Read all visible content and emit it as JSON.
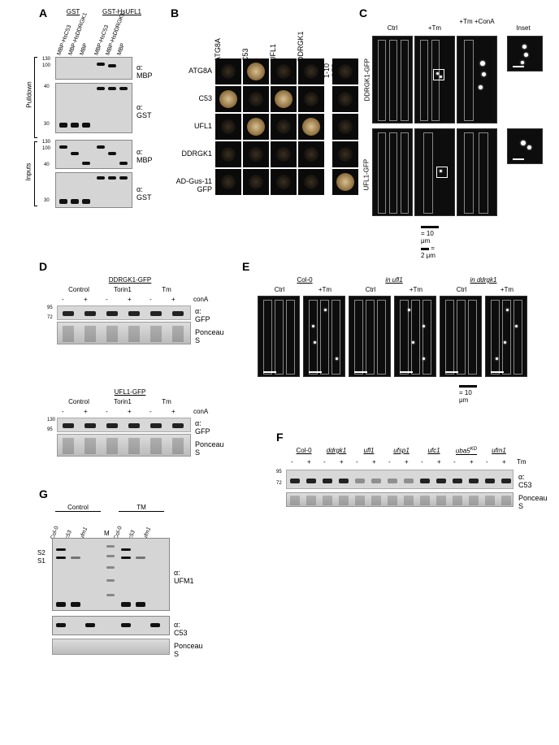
{
  "panels": {
    "A": {
      "label": "A",
      "groupLabels": [
        "GST",
        "GST-HsUFL1"
      ],
      "laneHeaders": [
        "MBP-HsC53",
        "MBP-HsDDRGK1",
        "MBP",
        "MBP-HsC53",
        "MBP-HsDDRGK1",
        "MBP"
      ],
      "mw": [
        "130",
        "100",
        "40",
        "30",
        "130",
        "100",
        "40",
        "30",
        "30"
      ],
      "sideLabels": [
        "Pulldown",
        "Inputs"
      ],
      "antibodies": [
        "α: MBP",
        "α: GST",
        "α: MBP",
        "α: GST"
      ]
    },
    "B": {
      "label": "B",
      "cols": [
        "ATG8A",
        "C53",
        "UFL1",
        "DDRGK1",
        "BD-1-10 GFP"
      ],
      "rows": [
        "ATG8A",
        "C53",
        "UFL1",
        "DDRGK1",
        "AD-Gus-11 GFP"
      ],
      "strong": [
        [
          0,
          1
        ],
        [
          1,
          0
        ],
        [
          1,
          2
        ],
        [
          2,
          1
        ],
        [
          2,
          3
        ],
        [
          4,
          4
        ]
      ],
      "faint": [
        [
          0,
          0
        ],
        [
          0,
          2
        ],
        [
          0,
          3
        ],
        [
          1,
          1
        ],
        [
          1,
          3
        ],
        [
          2,
          0
        ],
        [
          2,
          2
        ],
        [
          3,
          0
        ],
        [
          3,
          1
        ],
        [
          3,
          2
        ],
        [
          3,
          3
        ],
        [
          4,
          0
        ],
        [
          4,
          1
        ],
        [
          4,
          2
        ],
        [
          4,
          3
        ],
        [
          0,
          4
        ],
        [
          1,
          4
        ],
        [
          2,
          4
        ],
        [
          3,
          4
        ]
      ]
    },
    "C": {
      "label": "C",
      "colHeaders": [
        "Ctrl",
        "+Tm",
        "+Tm +ConA",
        "Inset"
      ],
      "rowLabels": [
        "DDRGK1-GFP",
        "UFL1-GFP"
      ],
      "scale": {
        "large": "= 10 μm",
        "small": "= 2 μm"
      }
    },
    "D": {
      "label": "D",
      "sets": [
        {
          "title": "DDRGK1-GFP",
          "treatments": [
            "Control",
            "Torin1",
            "Tm"
          ],
          "conA": [
            "-",
            "+",
            "-",
            "+",
            "-",
            "+"
          ],
          "conALabel": "conA",
          "antibody": "α: GFP",
          "loading": "Ponceau S",
          "mw": [
            "95",
            "72"
          ]
        },
        {
          "title": "UFL1-GFP",
          "treatments": [
            "Control",
            "Torin1",
            "Tm"
          ],
          "conA": [
            "-",
            "+",
            "-",
            "+",
            "-",
            "+"
          ],
          "conALabel": "conA",
          "antibody": "α: GFP",
          "loading": "Ponceau S",
          "mw": [
            "130",
            "95"
          ]
        }
      ]
    },
    "E": {
      "label": "E",
      "genotypes": [
        "Col-0",
        "in ufl1",
        "in ddrgk1"
      ],
      "treatments": [
        "Ctrl",
        "+Tm",
        "Ctrl",
        "+Tm",
        "Ctrl",
        "+Tm"
      ],
      "scale": "= 10 μm"
    },
    "F": {
      "label": "F",
      "genotypes": [
        "Col-0",
        "ddrgk1",
        "ufl1",
        "ufsp1",
        "ufc1",
        "uba5",
        "ufm1"
      ],
      "uba5sup": "KD",
      "tm": [
        "-",
        "+",
        "-",
        "+",
        "-",
        "+",
        "-",
        "+",
        "-",
        "+",
        "-",
        "+",
        "-",
        "+"
      ],
      "tmLabel": "Tm",
      "mw": [
        "95",
        "72"
      ],
      "antibody": "α: C53",
      "loading": "Ponceau S"
    },
    "G": {
      "label": "G",
      "groups": [
        "Control",
        "TM"
      ],
      "genotypes": [
        "Col-0",
        "c53",
        "ufm1",
        "Col-0",
        "c53",
        "ufm1"
      ],
      "marker": "M",
      "bands": [
        "S2",
        "S1"
      ],
      "antibodies": [
        "α: UFM1",
        "α: C53"
      ],
      "loading": "Ponceau S"
    }
  },
  "colors": {
    "background": "#ffffff",
    "text": "#000000",
    "blotDark": "#2a2a2a",
    "blotLight": "#d5d5d5",
    "band": "#111111",
    "spotBg": "#0a0a0a",
    "spotYeast1": "#d8c090",
    "spotYeast2": "#8a6a3a",
    "microBg": "#0d0d0d"
  },
  "fonts": {
    "panelLabel": 14,
    "normal": 9,
    "small": 8,
    "tiny": 7
  }
}
